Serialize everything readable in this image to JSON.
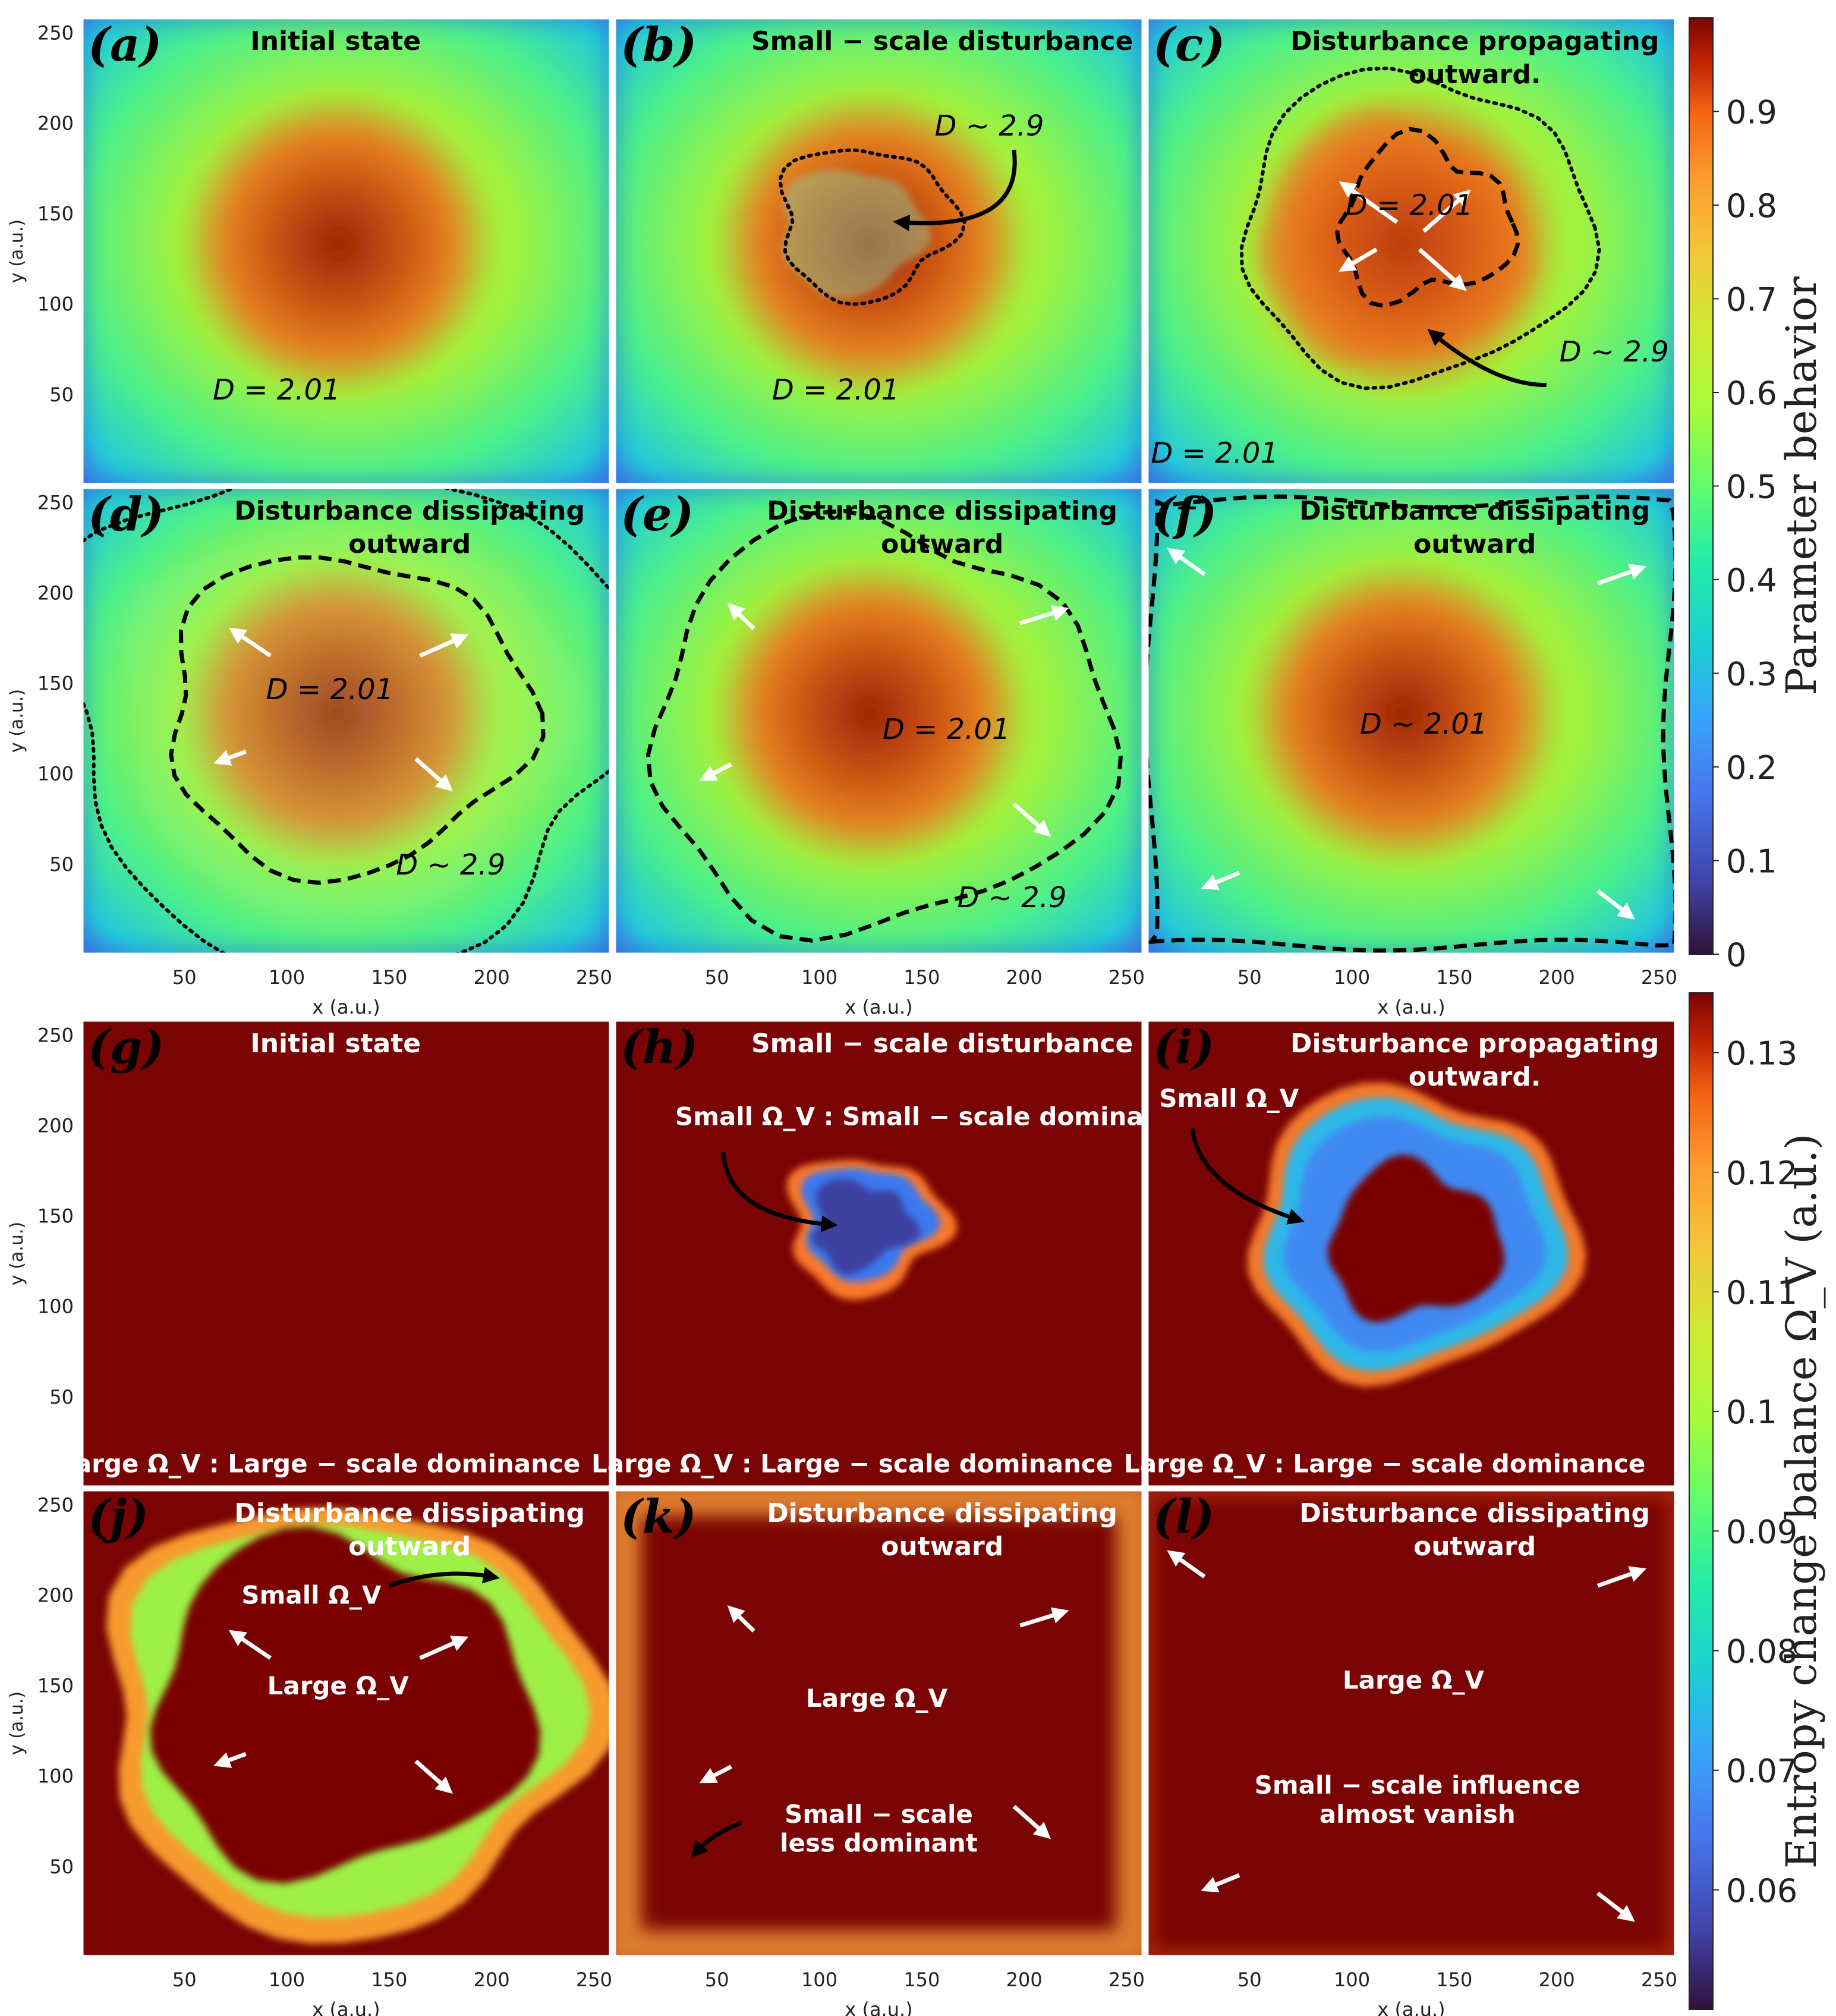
{
  "chart_data": {
    "type": "heatmap",
    "top_colorbar": {
      "label": "Parameter behavior",
      "range": [
        0,
        1
      ],
      "ticks": [
        "0",
        "0.1",
        "0.2",
        "0.3",
        "0.4",
        "0.5",
        "0.6",
        "0.7",
        "0.8",
        "0.9"
      ],
      "tick_values": [
        0,
        0.1,
        0.2,
        0.3,
        0.4,
        0.5,
        0.6,
        0.7,
        0.8,
        0.9
      ]
    },
    "bottom_colorbar": {
      "label": "Entropy change balance Ω_V (a.u.)",
      "range": [
        0.05,
        0.135
      ],
      "ticks": [
        "0.06",
        "0.07",
        "0.08",
        "0.09",
        "0.1",
        "0.11",
        "0.12",
        "0.13"
      ],
      "tick_values": [
        0.06,
        0.07,
        0.08,
        0.09,
        0.1,
        0.11,
        0.12,
        0.13
      ]
    },
    "axes": {
      "xlabel": "x (a.u.)",
      "ylabel": "y (a.u.)",
      "xlim": [
        0,
        258
      ],
      "ylim": [
        0,
        258
      ],
      "ticks": [
        50,
        100,
        150,
        200,
        250
      ],
      "tick_labels": [
        "50",
        "100",
        "150",
        "200",
        "250"
      ]
    },
    "panels": [
      {
        "id": "a",
        "label": "(a)",
        "title": [
          "Initial state"
        ],
        "field": "param",
        "stage": 0,
        "annotations": [
          {
            "text": "D = 2.01",
            "x": 95,
            "y": 47
          }
        ]
      },
      {
        "id": "b",
        "label": "(b)",
        "title": [
          "Small − scale disturbance"
        ],
        "field": "param",
        "stage": 1,
        "annotations": [
          {
            "text": "D ∼ 2.9",
            "x": 183,
            "y": 193
          },
          {
            "text": "D = 2.01",
            "x": 108,
            "y": 47
          }
        ]
      },
      {
        "id": "c",
        "label": "(c)",
        "title": [
          "Disturbance propagating",
          "outward."
        ],
        "field": "param",
        "stage": 2,
        "annotations": [
          {
            "text": "D = 2.01",
            "x": 128,
            "y": 149
          },
          {
            "text": "D ∼ 2.9",
            "x": 228,
            "y": 68
          },
          {
            "text": "D = 2.01",
            "x": 33,
            "y": 12
          }
        ]
      },
      {
        "id": "d",
        "label": "(d)",
        "title": [
          "Disturbance dissipating",
          "outward"
        ],
        "field": "param",
        "stage": 3,
        "annotations": [
          {
            "text": "D = 2.01",
            "x": 121,
            "y": 141
          },
          {
            "text": "D ∼ 2.9",
            "x": 180,
            "y": 44
          }
        ]
      },
      {
        "id": "e",
        "label": "(e)",
        "title": [
          "Disturbance dissipating",
          "outward"
        ],
        "field": "param",
        "stage": 4,
        "annotations": [
          {
            "text": "D = 2.01",
            "x": 162,
            "y": 119
          },
          {
            "text": "D ∼ 2.9",
            "x": 194,
            "y": 26
          }
        ]
      },
      {
        "id": "f",
        "label": "(f)",
        "title": [
          "Disturbance dissipating",
          "outward"
        ],
        "field": "param",
        "stage": 5,
        "annotations": [
          {
            "text": "D ∼ 2.01",
            "x": 135,
            "y": 122
          }
        ]
      },
      {
        "id": "g",
        "label": "(g)",
        "title": [
          "Initial state"
        ],
        "field": "omega",
        "stage": 0,
        "annotations": [
          {
            "text": "Large Ω_V : Large − scale dominance",
            "x": 116,
            "y": 8
          }
        ]
      },
      {
        "id": "h",
        "label": "(h)",
        "title": [
          "Small − scale disturbance"
        ],
        "field": "omega",
        "stage": 1,
        "annotations": [
          {
            "text": "Small Ω_V : Small − scale dominance",
            "x": 156,
            "y": 200
          },
          {
            "text": "Large Ω_V : Large − scale dominance",
            "x": 116,
            "y": 8
          }
        ]
      },
      {
        "id": "i",
        "label": "(i)",
        "title": [
          "Disturbance propagating",
          "outward."
        ],
        "field": "omega",
        "stage": 2,
        "annotations": [
          {
            "text": "Small Ω_V",
            "x": 40,
            "y": 210
          },
          {
            "text": "Large Ω_V : Large − scale dominance",
            "x": 116,
            "y": 8
          }
        ]
      },
      {
        "id": "j",
        "label": "(j)",
        "title": [
          "Disturbance dissipating",
          "outward"
        ],
        "field": "omega",
        "stage": 3,
        "annotations": [
          {
            "text": "Small Ω_V",
            "x": 112,
            "y": 195
          },
          {
            "text": "Large Ω_V",
            "x": 125,
            "y": 145
          }
        ]
      },
      {
        "id": "k",
        "label": "(k)",
        "title": [
          "Disturbance dissipating",
          "outward"
        ],
        "field": "omega",
        "stage": 4,
        "annotations": [
          {
            "text": "Large Ω_V",
            "x": 128,
            "y": 138
          },
          {
            "text": "Small − scale",
            "x": 129,
            "y": 74
          },
          {
            "text": "less dominant",
            "x": 129,
            "y": 58
          }
        ]
      },
      {
        "id": "l",
        "label": "(l)",
        "title": [
          "Disturbance dissipating",
          "outward"
        ],
        "field": "omega",
        "stage": 5,
        "annotations": [
          {
            "text": "Large Ω_V",
            "x": 130,
            "y": 148
          },
          {
            "text": "Small − scale influence",
            "x": 132,
            "y": 90
          },
          {
            "text": "almost vanish",
            "x": 132,
            "y": 74
          }
        ]
      }
    ]
  }
}
